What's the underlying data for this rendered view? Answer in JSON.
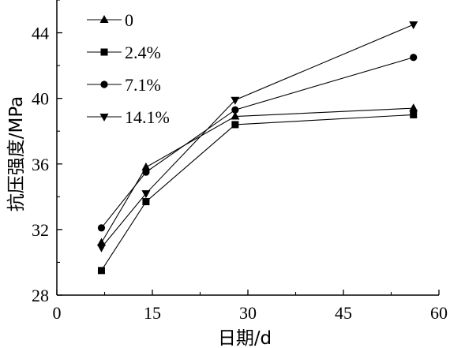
{
  "chart_data": {
    "type": "line",
    "xlabel": "日期/d",
    "ylabel": "抗压强度/MPa",
    "xlim": [
      0,
      60
    ],
    "ylim": [
      28,
      46
    ],
    "xticks": [
      0,
      15,
      30,
      45,
      60
    ],
    "yticks": [
      28,
      32,
      36,
      40,
      44
    ],
    "xtick_labels": [
      "0",
      "15",
      "30",
      "45",
      "60"
    ],
    "ytick_labels": [
      "28",
      "32",
      "36",
      "40",
      "44"
    ],
    "grid": false,
    "legend_position": "top-left",
    "x": [
      7,
      14,
      28,
      56
    ],
    "series": [
      {
        "name": "0",
        "marker": "triangle-up",
        "values": [
          31.2,
          35.8,
          38.9,
          39.4
        ]
      },
      {
        "name": "2.4%",
        "marker": "square",
        "values": [
          29.5,
          33.7,
          38.4,
          39.0
        ]
      },
      {
        "name": "7.1%",
        "marker": "circle",
        "values": [
          32.1,
          35.5,
          39.3,
          42.5
        ]
      },
      {
        "name": "14.1%",
        "marker": "triangle-down",
        "values": [
          30.9,
          34.2,
          39.9,
          44.5
        ]
      }
    ],
    "colors": {
      "line": "#000000",
      "marker": "#000000",
      "axis": "#000000"
    }
  }
}
